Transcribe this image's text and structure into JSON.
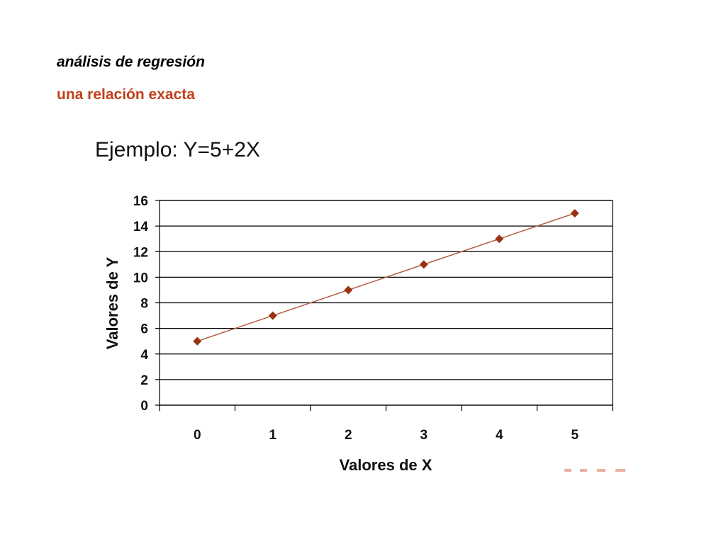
{
  "slide": {
    "heading": "análisis de regresión",
    "subheading": "una relación exacta"
  },
  "colors": {
    "subheading": "#c0401c",
    "series": "#9b3212",
    "line": "#b05a40",
    "grid": "#000000"
  },
  "chart_data": {
    "type": "line",
    "title": "Ejemplo: Y=5+2X",
    "xlabel": "Valores de X",
    "ylabel": "Valores de Y",
    "categories": [
      "0",
      "1",
      "2",
      "3",
      "4",
      "5"
    ],
    "x": [
      0,
      1,
      2,
      3,
      4,
      5
    ],
    "series": [
      {
        "values": [
          5,
          7,
          9,
          11,
          13,
          15
        ],
        "marker": "diamond"
      }
    ],
    "ylim": [
      0,
      16
    ],
    "yticks": [
      0,
      2,
      4,
      6,
      8,
      10,
      12,
      14,
      16
    ],
    "grid": true,
    "legend": "none"
  }
}
